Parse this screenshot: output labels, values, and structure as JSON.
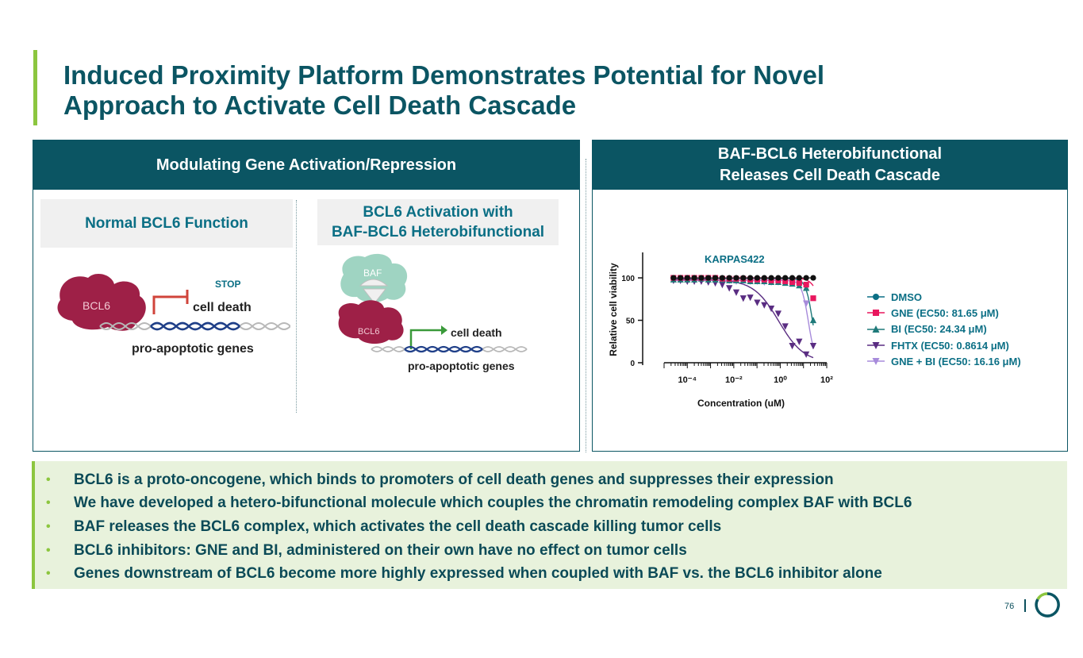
{
  "title": {
    "line1": "Induced Proximity Platform Demonstrates Potential for Novel",
    "line2": "Approach to Activate Cell Death Cascade"
  },
  "left_panel": {
    "header": "Modulating Gene Activation/Repression",
    "normal": {
      "label": "Normal BCL6 Function",
      "protein": "BCL6",
      "stop": "STOP",
      "effect": "cell death",
      "genes": "pro-apoptotic genes"
    },
    "activation": {
      "label_line1": "BCL6 Activation with",
      "label_line2": "BAF-BCL6 Heterobifunctional",
      "baf": "BAF",
      "protein": "BCL6",
      "effect": "cell death",
      "genes": "pro-apoptotic genes"
    }
  },
  "right_panel": {
    "header_line1": "BAF-BCL6 Heterobifunctional",
    "header_line2": "Releases Cell Death Cascade"
  },
  "chart_data": {
    "type": "scatter",
    "title": "KARPAS422",
    "xlabel": "Concentration (uM)",
    "ylabel": "Relative cell viability",
    "x_scale": "log",
    "x_ticks": [
      "10⁻⁴",
      "10⁻²",
      "10⁰",
      "10²"
    ],
    "y_ticks": [
      0,
      50,
      100
    ],
    "ylim": [
      0,
      130
    ],
    "legend_position": "right",
    "series": [
      {
        "name": "DMSO",
        "color": "#0b6f85",
        "marker": "circle",
        "x": [
          2.54e-05,
          5.08e-05,
          0.0001,
          0.0002,
          0.0004,
          0.0008,
          0.0016,
          0.0032,
          0.0064,
          0.0128,
          0.0256,
          0.0512,
          0.102,
          0.205,
          0.41,
          0.82,
          1.64,
          3.28,
          6.55,
          13.1,
          26.2
        ],
        "y": [
          100,
          100,
          100,
          100,
          100,
          100,
          100,
          100,
          100,
          100,
          100,
          100,
          100,
          100,
          100,
          100,
          100,
          100,
          100,
          100,
          100
        ]
      },
      {
        "name": "GNE (EC50: 81.65 μM)",
        "color": "#e8175d",
        "marker": "square",
        "x": [
          2.54e-05,
          5.08e-05,
          0.0001,
          0.0002,
          0.0004,
          0.0008,
          0.0016,
          0.0032,
          0.0064,
          0.0128,
          0.0256,
          0.0512,
          0.102,
          0.205,
          0.41,
          0.82,
          1.64,
          3.28,
          6.55,
          13.1,
          26.2
        ],
        "y": [
          100,
          100,
          100,
          100,
          100,
          100,
          100,
          99,
          99,
          99,
          99,
          98,
          98,
          98,
          97,
          97,
          96,
          95,
          94,
          92,
          76
        ]
      },
      {
        "name": "BI (EC50: 24.34 μM)",
        "color": "#1f7a7a",
        "marker": "triangle",
        "x": [
          2.54e-05,
          5.08e-05,
          0.0001,
          0.0002,
          0.0004,
          0.0008,
          0.0016,
          0.0032,
          0.0064,
          0.0128,
          0.0256,
          0.0512,
          0.102,
          0.205,
          0.41,
          0.82,
          1.64,
          3.28,
          6.55,
          13.1,
          26.2
        ],
        "y": [
          98,
          98,
          98,
          98,
          99,
          98,
          98,
          98,
          97,
          97,
          97,
          96,
          96,
          96,
          95,
          95,
          94,
          93,
          91,
          88,
          50
        ]
      },
      {
        "name": "FHTX (EC50: 0.8614 μM)",
        "color": "#5a2d82",
        "marker": "triangle-down",
        "x": [
          2.54e-05,
          5.08e-05,
          0.0001,
          0.0002,
          0.0004,
          0.0008,
          0.0016,
          0.0032,
          0.0064,
          0.0128,
          0.0256,
          0.0512,
          0.102,
          0.205,
          0.41,
          0.82,
          1.64,
          3.28,
          6.55,
          13.1,
          26.2
        ],
        "y": [
          97,
          97,
          96,
          96,
          96,
          95,
          94,
          92,
          88,
          83,
          76,
          77,
          71,
          68,
          64,
          58,
          43,
          20,
          25,
          10,
          20
        ]
      },
      {
        "name": "GNE + BI (EC50: 16.16 μM)",
        "color": "#a78bdb",
        "marker": "triangle-down",
        "x": [
          2.54e-05,
          5.08e-05,
          0.0001,
          0.0002,
          0.0004,
          0.0008,
          0.0016,
          0.0032,
          0.0064,
          0.0128,
          0.0256,
          0.0512,
          0.102,
          0.205,
          0.41,
          0.82,
          1.64,
          3.28,
          6.55,
          13.1,
          26.2
        ],
        "y": [
          97,
          97,
          97,
          97,
          97,
          97,
          97,
          97,
          97,
          96,
          96,
          96,
          96,
          95,
          95,
          95,
          95,
          94,
          93,
          70,
          20
        ]
      }
    ]
  },
  "bullets": [
    "BCL6 is a proto-oncogene, which binds to promoters of cell death genes and suppresses their expression",
    "We have developed a hetero-bifunctional molecule which couples the chromatin remodeling complex BAF with BCL6",
    "BAF releases the BCL6 complex, which activates the cell death cascade killing tumor cells",
    "BCL6 inhibitors: GNE and BI, administered on their own have no effect on tumor cells",
    "Genes downstream of BCL6 become more highly expressed when coupled with BAF vs. the BCL6 inhibitor alone"
  ],
  "bullet_marker": "•",
  "page_number": "76",
  "colors": {
    "primary": "#0b5563",
    "accent": "#8cc63f",
    "bullet_bg": "#e8f2dc"
  }
}
